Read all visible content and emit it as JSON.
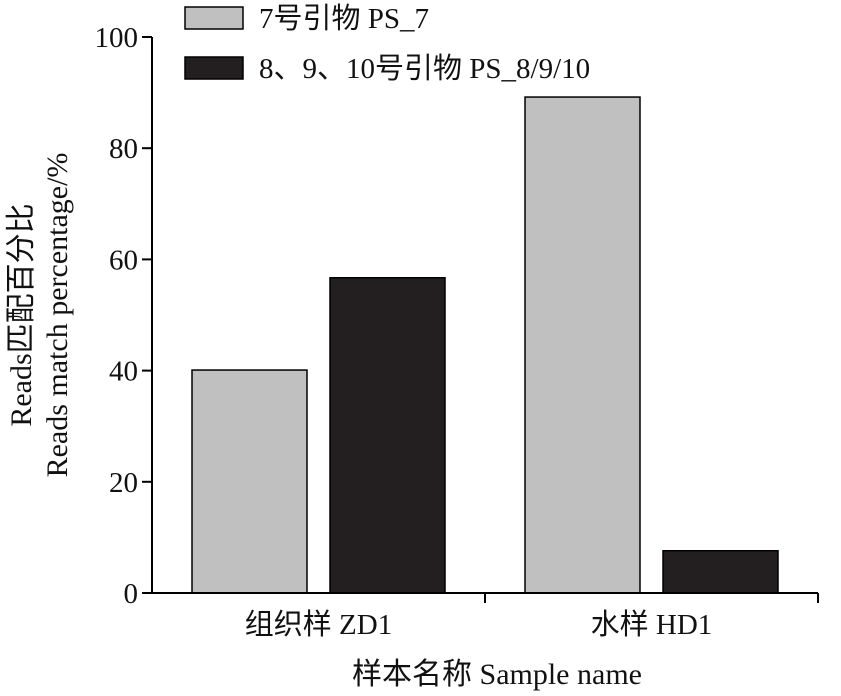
{
  "chart_data": {
    "type": "bar",
    "categories": [
      "组织样 ZD1",
      "水样 HD1"
    ],
    "series": [
      {
        "name": "7号引物 PS_7",
        "values": [
          40.1,
          89.2
        ],
        "color": "#c0c0c0"
      },
      {
        "name": "8、9、10号引物 PS_8/9/10",
        "values": [
          56.7,
          7.6
        ],
        "color": "#231f20"
      }
    ],
    "title": "",
    "xlabel": "样本名称 Sample name",
    "ylabel_lines": [
      "Reads匹配百分比",
      "Reads match percentage/%"
    ],
    "ylim": [
      0,
      100
    ],
    "yticks": [
      0,
      20,
      40,
      60,
      80,
      100
    ],
    "grid": false,
    "legend_position": "top-left"
  }
}
